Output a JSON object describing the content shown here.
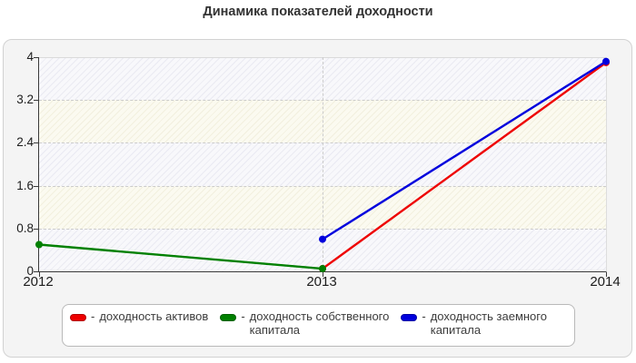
{
  "chart_data": {
    "type": "line",
    "title": "Динамика показателей доходности",
    "x_labels": [
      "2012",
      "2013",
      "2014"
    ],
    "xlim": [
      2012,
      2014
    ],
    "ylim": [
      0,
      4
    ],
    "y_ticks": [
      0,
      0.8,
      1.6,
      2.4,
      3.2,
      4
    ],
    "grid": "dashed horizontal line at each y tick; dashed vertical line at 2013",
    "legend_position": "bottom",
    "series": [
      {
        "name": "доходность активов",
        "color": "#ee0000",
        "points": [
          [
            2013,
            0.05
          ],
          [
            2014,
            3.9
          ]
        ]
      },
      {
        "name": "доходность собственного капитала",
        "color": "#008000",
        "points": [
          [
            2012,
            0.5
          ],
          [
            2013,
            0.05
          ]
        ]
      },
      {
        "name": "доходность заемного капитала",
        "color": "#0000dd",
        "points": [
          [
            2013,
            0.6
          ],
          [
            2014,
            3.92
          ]
        ]
      }
    ]
  },
  "legend": {
    "dash": "-",
    "items": [
      {
        "color": "#ee0000",
        "lines": [
          "доходность активов"
        ]
      },
      {
        "color": "#008000",
        "lines": [
          "доходность собственного",
          "капитала"
        ]
      },
      {
        "color": "#0000dd",
        "lines": [
          "доходность заемного",
          "капитала"
        ]
      }
    ]
  }
}
